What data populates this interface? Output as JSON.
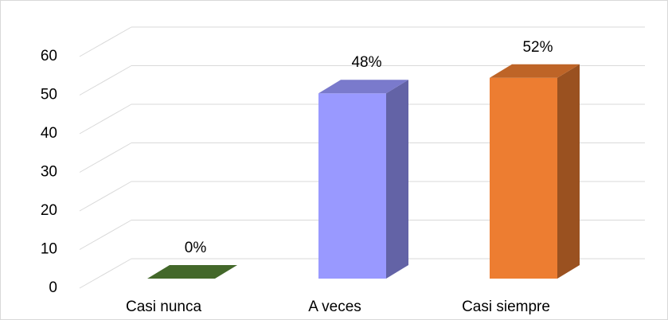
{
  "chart_data": {
    "type": "bar3d",
    "categories": [
      "Casi nunca",
      "A veces",
      "Casi siempre"
    ],
    "values": [
      0,
      48,
      52
    ],
    "value_labels": [
      "0%",
      "48%",
      "52%"
    ],
    "colors": [
      "#548235",
      "#9999ff",
      "#ed7d31"
    ],
    "ylim": [
      0,
      60
    ],
    "yticks": [
      0,
      10,
      20,
      30,
      40,
      50,
      60
    ],
    "grid": true
  }
}
